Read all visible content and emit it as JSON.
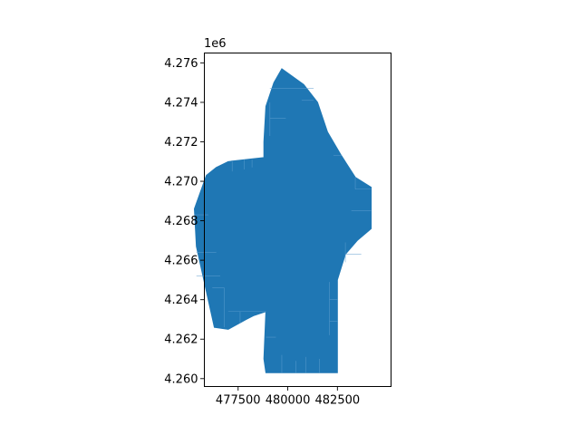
{
  "chart_data": {
    "type": "area",
    "title": "",
    "xlabel": "",
    "ylabel": "",
    "y_offset_label": "1e6",
    "xlim": [
      475800,
      485200
    ],
    "ylim": [
      4259600,
      4276500
    ],
    "x_ticks": [
      477500,
      480000,
      482500
    ],
    "x_tick_labels": [
      "477500",
      "480000",
      "482500"
    ],
    "y_ticks": [
      4260000,
      4262000,
      4264000,
      4266000,
      4268000,
      4270000,
      4272000,
      4274000,
      4276000
    ],
    "y_tick_labels": [
      "4.260",
      "4.262",
      "4.264",
      "4.266",
      "4.268",
      "4.270",
      "4.272",
      "4.274",
      "4.276"
    ],
    "grid": false,
    "legend": "none",
    "fill_color": "#1f77b4",
    "edge_color": "#5f9fcf",
    "polygon": [
      [
        479700,
        4275700
      ],
      [
        480800,
        4274900
      ],
      [
        481500,
        4274000
      ],
      [
        482000,
        4272500
      ],
      [
        482700,
        4271300
      ],
      [
        483400,
        4270200
      ],
      [
        484200,
        4269700
      ],
      [
        484200,
        4267600
      ],
      [
        483500,
        4267000
      ],
      [
        482900,
        4266300
      ],
      [
        482500,
        4265000
      ],
      [
        482500,
        4260300
      ],
      [
        478900,
        4260300
      ],
      [
        478800,
        4261000
      ],
      [
        478900,
        4263400
      ],
      [
        478300,
        4263200
      ],
      [
        477900,
        4263000
      ],
      [
        477000,
        4262500
      ],
      [
        476300,
        4262600
      ],
      [
        475400,
        4266700
      ],
      [
        475300,
        4268600
      ],
      [
        475900,
        4270300
      ],
      [
        476400,
        4270700
      ],
      [
        477000,
        4271000
      ],
      [
        478800,
        4271200
      ],
      [
        478800,
        4272000
      ],
      [
        478900,
        4273800
      ],
      [
        479300,
        4275000
      ]
    ],
    "inner_edges": [
      [
        [
          476200,
          4264600
        ],
        [
          476800,
          4264600
        ]
      ],
      [
        [
          476800,
          4264600
        ],
        [
          476800,
          4262600
        ]
      ],
      [
        [
          477000,
          4263400
        ],
        [
          478900,
          4263400
        ]
      ],
      [
        [
          477600,
          4263400
        ],
        [
          477600,
          4262800
        ]
      ],
      [
        [
          475400,
          4265200
        ],
        [
          476600,
          4265200
        ]
      ],
      [
        [
          475400,
          4266400
        ],
        [
          476400,
          4266400
        ]
      ],
      [
        [
          475300,
          4268300
        ],
        [
          476000,
          4268300
        ]
      ],
      [
        [
          477200,
          4271000
        ],
        [
          477200,
          4270500
        ]
      ],
      [
        [
          477800,
          4271100
        ],
        [
          477800,
          4270600
        ]
      ],
      [
        [
          478200,
          4271100
        ],
        [
          478200,
          4270700
        ]
      ],
      [
        [
          479100,
          4274700
        ],
        [
          481300,
          4274700
        ]
      ],
      [
        [
          479100,
          4273200
        ],
        [
          479900,
          4273200
        ]
      ],
      [
        [
          480700,
          4274100
        ],
        [
          481300,
          4274100
        ]
      ],
      [
        [
          479100,
          4272300
        ],
        [
          479100,
          4274000
        ]
      ],
      [
        [
          482300,
          4271300
        ],
        [
          482700,
          4271300
        ]
      ],
      [
        [
          483400,
          4269600
        ],
        [
          484200,
          4269600
        ]
      ],
      [
        [
          483400,
          4270200
        ],
        [
          483400,
          4269600
        ]
      ],
      [
        [
          483200,
          4268500
        ],
        [
          484200,
          4268500
        ]
      ],
      [
        [
          482900,
          4266300
        ],
        [
          483700,
          4266300
        ]
      ],
      [
        [
          482900,
          4266900
        ],
        [
          482900,
          4265900
        ]
      ],
      [
        [
          482100,
          4264900
        ],
        [
          482100,
          4262200
        ]
      ],
      [
        [
          482100,
          4264000
        ],
        [
          482500,
          4264000
        ]
      ],
      [
        [
          482100,
          4262900
        ],
        [
          482500,
          4262900
        ]
      ],
      [
        [
          479700,
          4260300
        ],
        [
          479700,
          4261200
        ]
      ],
      [
        [
          480400,
          4260300
        ],
        [
          480400,
          4260900
        ]
      ],
      [
        [
          480900,
          4260300
        ],
        [
          480900,
          4261100
        ]
      ],
      [
        [
          481600,
          4260300
        ],
        [
          481600,
          4261000
        ]
      ],
      [
        [
          478900,
          4262100
        ],
        [
          479400,
          4262100
        ]
      ]
    ]
  }
}
